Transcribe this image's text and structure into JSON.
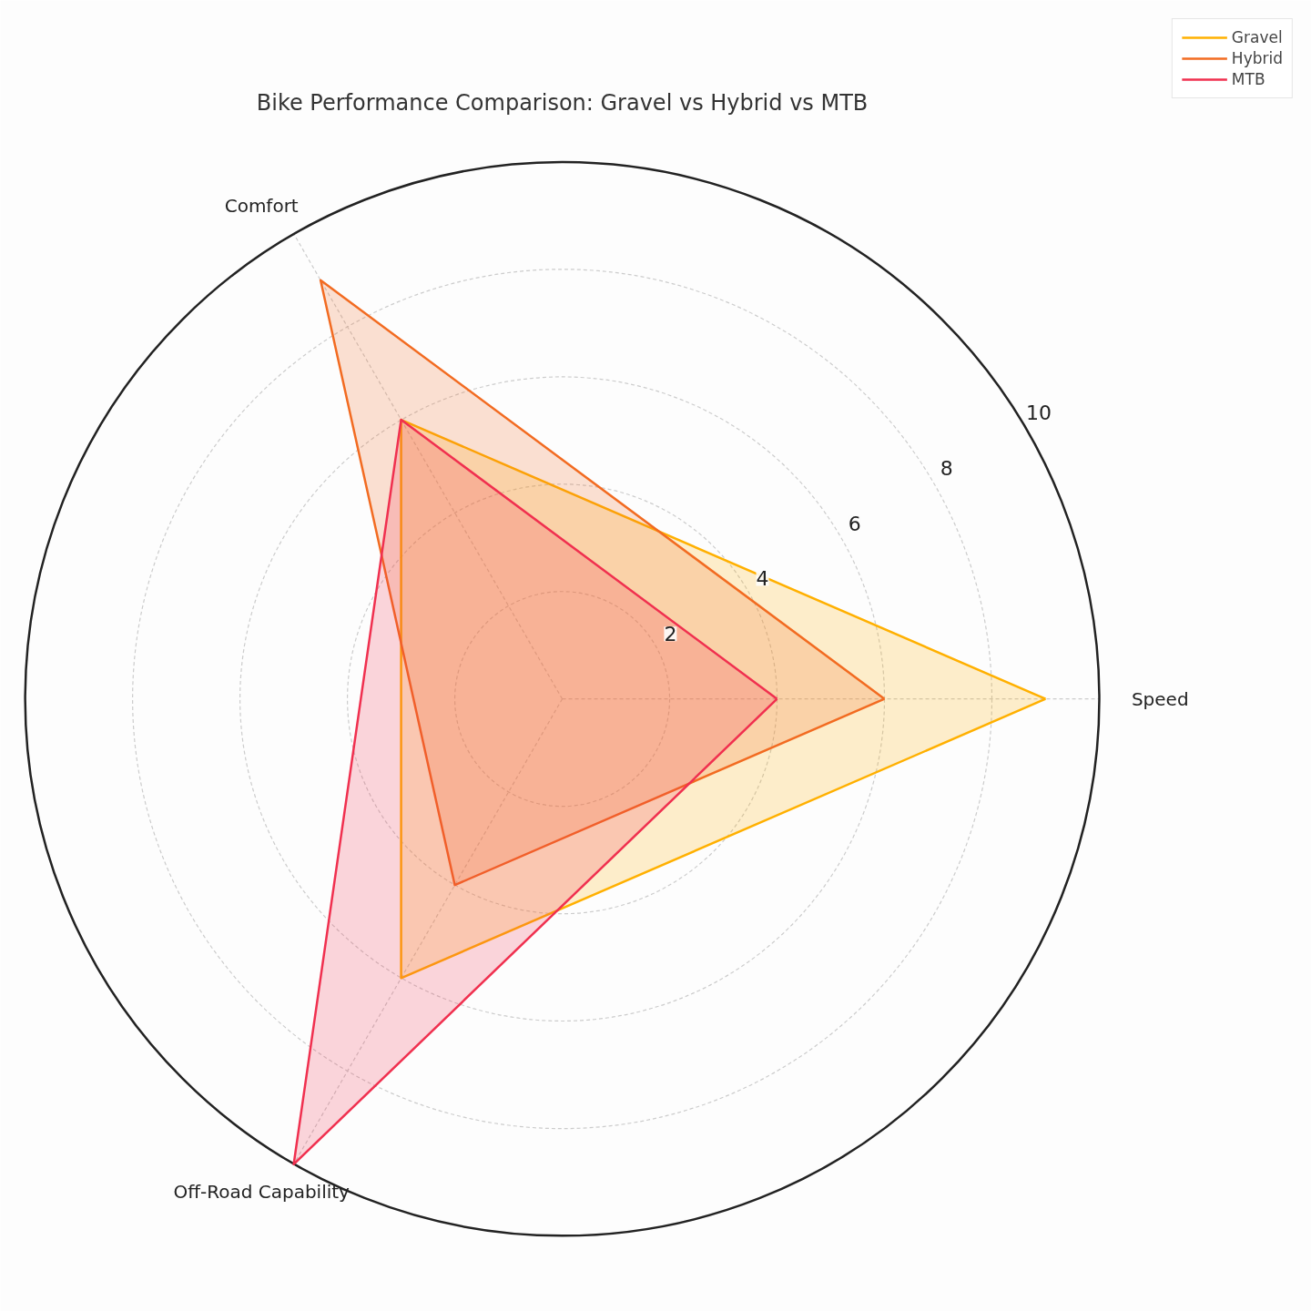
{
  "chart_data": {
    "type": "radar",
    "title": "Bike Performance Comparison: Gravel vs Hybrid vs MTB",
    "categories": [
      "Speed",
      "Off-Road Capability",
      "Comfort"
    ],
    "series": [
      {
        "name": "Gravel",
        "color": "#ffb000",
        "values": [
          9,
          6,
          6
        ]
      },
      {
        "name": "Hybrid",
        "color": "#f26b21",
        "values": [
          6,
          4,
          9
        ]
      },
      {
        "name": "MTB",
        "color": "#f0304f",
        "values": [
          4,
          10,
          6
        ]
      }
    ],
    "ylim": [
      0,
      10
    ],
    "yticks": [
      2,
      4,
      6,
      8,
      10
    ],
    "grid": true,
    "legend": "top right",
    "marker": "none",
    "line_style": "solid"
  }
}
